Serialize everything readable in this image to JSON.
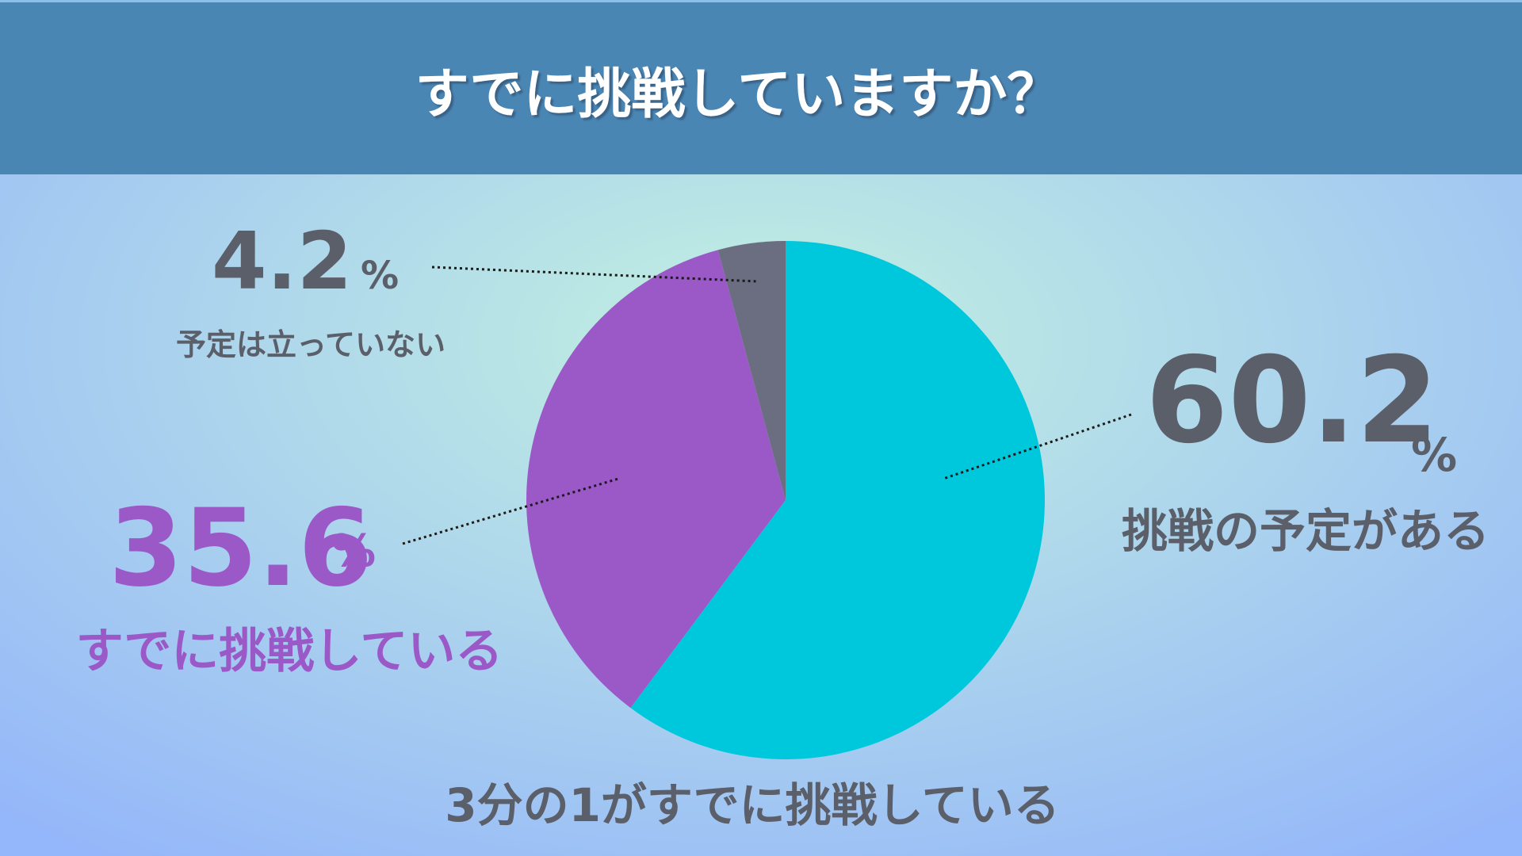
{
  "chart_data": {
    "type": "pie",
    "title": "すでに挑戦していますか？",
    "categories": [
      "挑戦の予定がある",
      "すでに挑戦している",
      "予定は立っていない"
    ],
    "values": [
      60.2,
      35.6,
      4.2
    ],
    "colors": [
      "#00c8dc",
      "#9b59c8",
      "#6b6e80"
    ],
    "unit": "%",
    "footnote": "3分の1がすでに挑戦している"
  }
}
